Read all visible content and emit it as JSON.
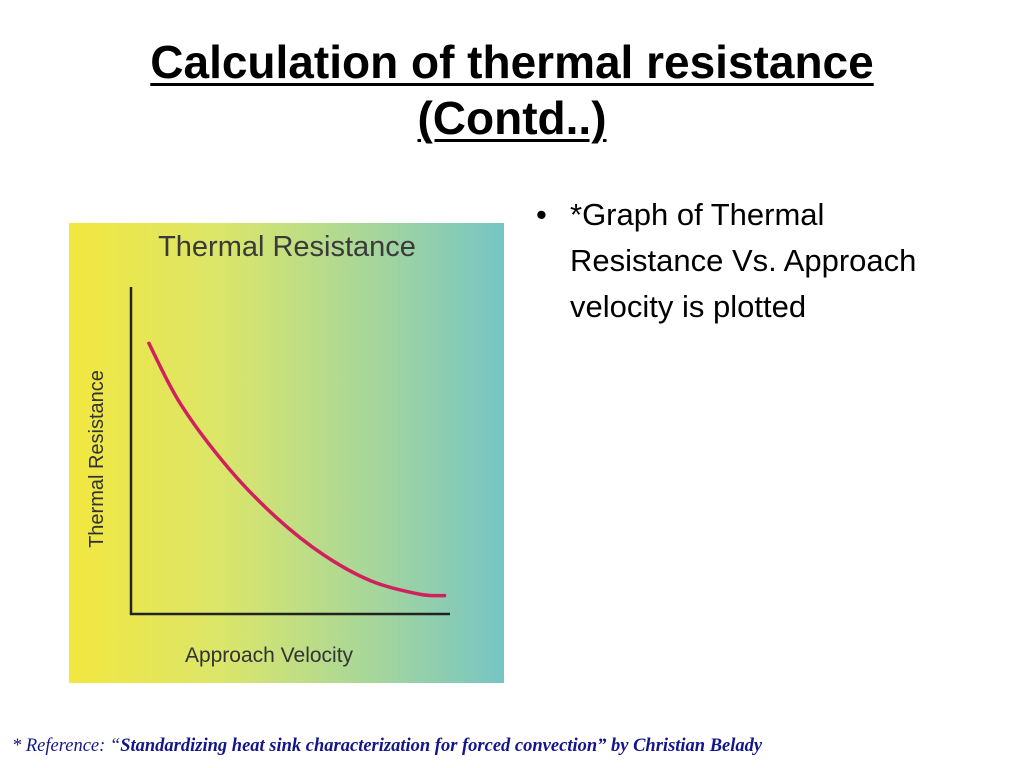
{
  "slide": {
    "title_line1": "Calculation of thermal resistance",
    "title_line2": "(Contd..)"
  },
  "bullets": [
    {
      "marker": "•",
      "text": "*Graph of Thermal Resistance Vs. Approach velocity is plotted"
    }
  ],
  "footnote": {
    "asterisk": "*",
    "prefix": " Reference: “",
    "bold_text": "Standardizing heat sink characterization for forced convection” by Christian Belady"
  },
  "colors": {
    "curve": "#d0215e",
    "footnote": "#13158a",
    "gradient_left": "#f2e73f",
    "gradient_right": "#76c5c4"
  },
  "chart_data": {
    "type": "line",
    "title": "Thermal Resistance",
    "xlabel": "Approach Velocity",
    "ylabel": "Thermal Resistance",
    "x_ticks": [],
    "y_ticks": [],
    "grid": false,
    "legend": "none",
    "series": [
      {
        "values": [
          {
            "x": 0.05,
            "y": 0.93
          },
          {
            "x": 0.15,
            "y": 0.72
          },
          {
            "x": 0.3,
            "y": 0.5
          },
          {
            "x": 0.45,
            "y": 0.33
          },
          {
            "x": 0.6,
            "y": 0.2
          },
          {
            "x": 0.75,
            "y": 0.11
          },
          {
            "x": 0.9,
            "y": 0.065
          },
          {
            "x": 0.98,
            "y": 0.06
          }
        ]
      }
    ]
  }
}
